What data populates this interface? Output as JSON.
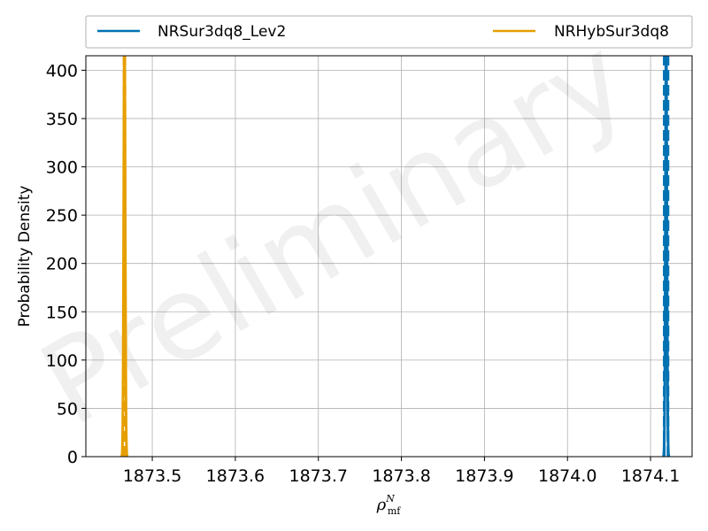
{
  "chart_data": {
    "type": "line",
    "xlabel_main": "ρ",
    "xlabel_sub": "mf",
    "xlabel_sup": "N",
    "ylabel": "Probability Density",
    "xlim": [
      1873.42,
      1874.15
    ],
    "ylim": [
      0,
      415
    ],
    "x_ticks": [
      1873.5,
      1873.6,
      1873.7,
      1873.8,
      1873.9,
      1874.0,
      1874.1
    ],
    "x_tick_labels": [
      "1873.5",
      "1873.6",
      "1873.7",
      "1873.8",
      "1873.9",
      "1874.0",
      "1874.1"
    ],
    "y_ticks": [
      0,
      50,
      100,
      150,
      200,
      250,
      300,
      350,
      400
    ],
    "y_tick_labels": [
      "0",
      "50",
      "100",
      "150",
      "200",
      "250",
      "300",
      "350",
      "400"
    ],
    "grid": true,
    "legend_placement": "top, above plot",
    "watermark": "Preliminary",
    "series": [
      {
        "name": "NRSur3dq8_Lev2",
        "color": "#0072b2",
        "peak_x": 1874.1188,
        "sigma": 0.0009,
        "peak_y": 440,
        "marker_lines_x": [
          1874.1165,
          1874.121
        ]
      },
      {
        "name": "NRHybSur3dq8",
        "color": "#e69f00",
        "peak_x": 1873.4665,
        "sigma": 0.0009,
        "peak_y": 440,
        "marker_lines_x": [
          1873.466,
          1873.467
        ]
      }
    ]
  }
}
